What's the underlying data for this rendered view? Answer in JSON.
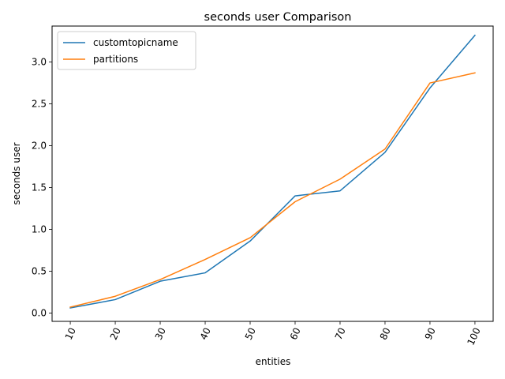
{
  "chart_data": {
    "type": "line",
    "title": "seconds user Comparison",
    "xlabel": "entities",
    "ylabel": "seconds user",
    "x": [
      10,
      20,
      30,
      40,
      50,
      60,
      70,
      80,
      90,
      100
    ],
    "x_tick_labels": [
      "10",
      "20",
      "30",
      "40",
      "50",
      "60",
      "70",
      "80",
      "90",
      "100"
    ],
    "y_ticks": [
      0.0,
      0.5,
      1.0,
      1.5,
      2.0,
      2.5,
      3.0
    ],
    "y_tick_labels": [
      "0.0",
      "0.5",
      "1.0",
      "1.5",
      "2.0",
      "2.5",
      "3.0"
    ],
    "ylim": [
      -0.1,
      3.43
    ],
    "grid": false,
    "legend_position": "upper-left",
    "series": [
      {
        "name": "customtopicname",
        "color": "#1f77b4",
        "values": [
          0.06,
          0.16,
          0.38,
          0.48,
          0.86,
          1.4,
          1.46,
          1.92,
          2.69,
          3.32
        ]
      },
      {
        "name": "partitions",
        "color": "#ff7f0e",
        "values": [
          0.07,
          0.2,
          0.4,
          0.64,
          0.9,
          1.33,
          1.6,
          1.96,
          2.75,
          2.87
        ]
      }
    ]
  }
}
